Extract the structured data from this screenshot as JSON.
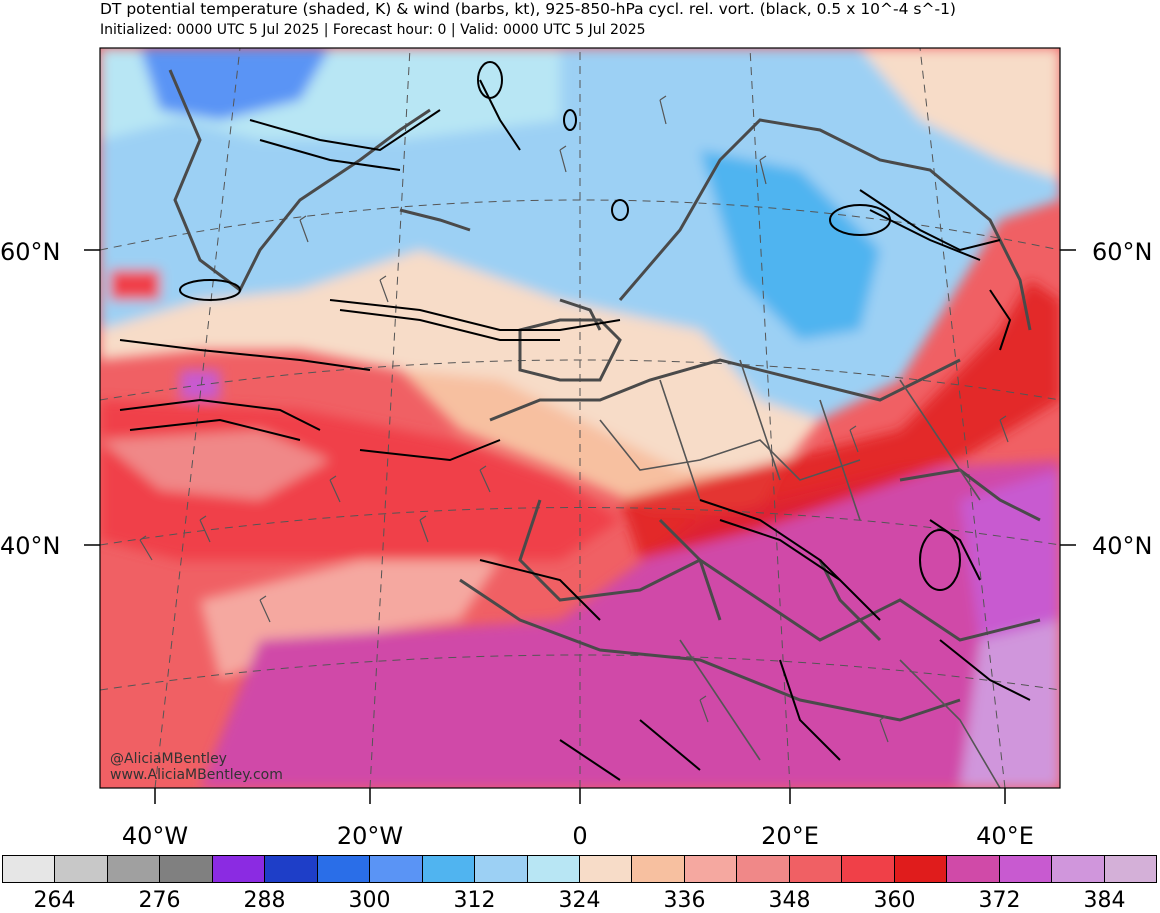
{
  "header": {
    "title": "DT potential temperature (shaded, K) & wind (barbs, kt), 925-850-hPa cycl. rel. vort. (black, 0.5 x 10^-4 s^-1)",
    "subtitle": "Initialized: 0000 UTC 5 Jul 2025 | Forecast hour: 0 | Valid: 0000 UTC 5 Jul 2025"
  },
  "map": {
    "lat_labels": {
      "north60_left": "60°N",
      "north60_right": "60°N",
      "north40_left": "40°N",
      "north40_right": "40°N"
    },
    "lon_labels": [
      "40°W",
      "20°W",
      "0",
      "20°E",
      "40°E"
    ]
  },
  "credits": {
    "handle": "@AliciaMBentley",
    "site": "www.AliciaMBentley.com"
  },
  "colorbar": {
    "colors": [
      "#e6e6e6",
      "#c8c8c8",
      "#a0a0a0",
      "#808080",
      "#8b2be2",
      "#1e3ec8",
      "#2a6ee8",
      "#5a94f5",
      "#50b4f0",
      "#9cd0f4",
      "#b8e6f4",
      "#f7dcc8",
      "#f7c0a0",
      "#f5a8a0",
      "#f08888",
      "#f06064",
      "#f04048",
      "#e01c1c",
      "#d04aa8",
      "#c85ad0",
      "#d096dc",
      "#d4b0d8"
    ],
    "tick_labels": [
      "264",
      "276",
      "288",
      "300",
      "312",
      "324",
      "336",
      "348",
      "360",
      "372",
      "384"
    ]
  }
}
